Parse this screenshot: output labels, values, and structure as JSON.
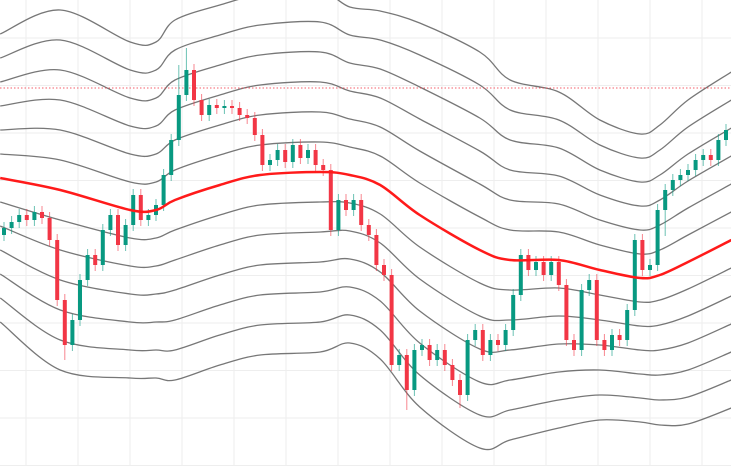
{
  "chart_data": {
    "type": "candlestick",
    "title": "",
    "xlabel": "",
    "ylabel": "",
    "grid": true,
    "ylim": [
      534,
      1000
    ],
    "colors": {
      "up": "#089981",
      "down": "#f23645",
      "middle_line": "#ff1a1a",
      "bands": "#555555",
      "reference_line": "#f23645",
      "grid": "#eeeeee"
    },
    "reference_line": 912,
    "candles": [
      [
        765,
        778,
        759,
        772
      ],
      [
        772,
        784,
        766,
        778
      ],
      [
        778,
        791,
        772,
        785
      ],
      [
        785,
        791,
        774,
        780
      ],
      [
        780,
        794,
        774,
        788
      ],
      [
        788,
        794,
        776,
        782
      ],
      [
        782,
        788,
        754,
        760
      ],
      [
        760,
        766,
        694,
        700
      ],
      [
        700,
        706,
        640,
        655
      ],
      [
        655,
        686,
        649,
        680
      ],
      [
        680,
        726,
        674,
        720
      ],
      [
        720,
        751,
        714,
        745
      ],
      [
        745,
        751,
        729,
        735
      ],
      [
        735,
        776,
        729,
        770
      ],
      [
        770,
        791,
        764,
        785
      ],
      [
        785,
        791,
        749,
        755
      ],
      [
        755,
        781,
        749,
        775
      ],
      [
        775,
        811,
        769,
        805
      ],
      [
        805,
        811,
        774,
        780
      ],
      [
        780,
        791,
        774,
        785
      ],
      [
        785,
        801,
        779,
        795
      ],
      [
        795,
        831,
        789,
        825
      ],
      [
        825,
        866,
        819,
        860
      ],
      [
        860,
        935,
        854,
        905
      ],
      [
        905,
        952,
        899,
        930
      ],
      [
        930,
        936,
        894,
        900
      ],
      [
        900,
        906,
        879,
        885
      ],
      [
        885,
        901,
        879,
        895
      ],
      [
        895,
        901,
        886,
        892
      ],
      [
        892,
        900,
        886,
        894
      ],
      [
        894,
        900,
        886,
        892
      ],
      [
        892,
        898,
        879,
        885
      ],
      [
        885,
        891,
        876,
        882
      ],
      [
        882,
        888,
        859,
        865
      ],
      [
        865,
        871,
        829,
        835
      ],
      [
        835,
        846,
        829,
        840
      ],
      [
        840,
        856,
        834,
        850
      ],
      [
        850,
        856,
        832,
        838
      ],
      [
        838,
        861,
        832,
        855
      ],
      [
        855,
        861,
        836,
        842
      ],
      [
        842,
        856,
        836,
        850
      ],
      [
        850,
        856,
        829,
        835
      ],
      [
        835,
        841,
        824,
        830
      ],
      [
        830,
        836,
        764,
        770
      ],
      [
        770,
        806,
        764,
        800
      ],
      [
        800,
        806,
        784,
        790
      ],
      [
        790,
        806,
        784,
        800
      ],
      [
        800,
        806,
        769,
        775
      ],
      [
        775,
        781,
        759,
        765
      ],
      [
        765,
        771,
        729,
        735
      ],
      [
        735,
        741,
        719,
        725
      ],
      [
        725,
        731,
        629,
        635
      ],
      [
        635,
        651,
        629,
        645
      ],
      [
        645,
        651,
        590,
        610
      ],
      [
        610,
        656,
        604,
        650
      ],
      [
        650,
        661,
        644,
        655
      ],
      [
        655,
        661,
        634,
        640
      ],
      [
        640,
        656,
        634,
        650
      ],
      [
        650,
        656,
        629,
        635
      ],
      [
        635,
        641,
        614,
        620
      ],
      [
        620,
        626,
        592,
        605
      ],
      [
        605,
        666,
        599,
        660
      ],
      [
        660,
        676,
        654,
        670
      ],
      [
        670,
        676,
        639,
        645
      ],
      [
        645,
        666,
        639,
        660
      ],
      [
        660,
        666,
        649,
        655
      ],
      [
        655,
        676,
        649,
        670
      ],
      [
        670,
        711,
        664,
        705
      ],
      [
        705,
        751,
        699,
        745
      ],
      [
        745,
        751,
        724,
        730
      ],
      [
        730,
        744,
        724,
        738
      ],
      [
        738,
        744,
        719,
        725
      ],
      [
        725,
        744,
        719,
        738
      ],
      [
        738,
        744,
        709,
        715
      ],
      [
        715,
        721,
        654,
        660
      ],
      [
        660,
        666,
        644,
        650
      ],
      [
        650,
        716,
        644,
        710
      ],
      [
        710,
        726,
        704,
        720
      ],
      [
        720,
        726,
        654,
        660
      ],
      [
        660,
        666,
        644,
        650
      ],
      [
        650,
        671,
        644,
        665
      ],
      [
        665,
        671,
        654,
        660
      ],
      [
        660,
        696,
        654,
        690
      ],
      [
        690,
        766,
        684,
        760
      ],
      [
        760,
        766,
        724,
        730
      ],
      [
        730,
        741,
        724,
        735
      ],
      [
        735,
        796,
        729,
        790
      ],
      [
        790,
        816,
        764,
        810
      ],
      [
        810,
        826,
        804,
        820
      ],
      [
        820,
        831,
        814,
        825
      ],
      [
        825,
        836,
        819,
        830
      ],
      [
        830,
        846,
        824,
        840
      ],
      [
        840,
        851,
        834,
        845
      ],
      [
        845,
        851,
        834,
        840
      ],
      [
        840,
        866,
        834,
        860
      ],
      [
        860,
        876,
        854,
        870
      ]
    ],
    "middle_line": {
      "index": [
        -0.5,
        7.4,
        16.6,
        20,
        22.5,
        28.4,
        33.7,
        41.6,
        45.5,
        49.5,
        54.7,
        62.6,
        66.6,
        73,
        78.4,
        83.7,
        86.3,
        90,
        95.7
      ],
      "value": [
        822,
        810,
        790,
        790,
        800,
        815,
        825,
        828,
        825,
        815,
        785,
        750,
        740,
        740,
        730,
        722,
        725,
        738,
        760
      ]
    },
    "band_width": [
      24,
      30,
      28,
      28,
      30,
      30,
      30,
      30,
      28,
      29,
      32,
      33,
      30,
      28,
      25,
      24,
      25,
      27,
      28
    ],
    "band_multipliers": [
      1,
      2,
      3,
      4,
      5,
      6
    ]
  }
}
